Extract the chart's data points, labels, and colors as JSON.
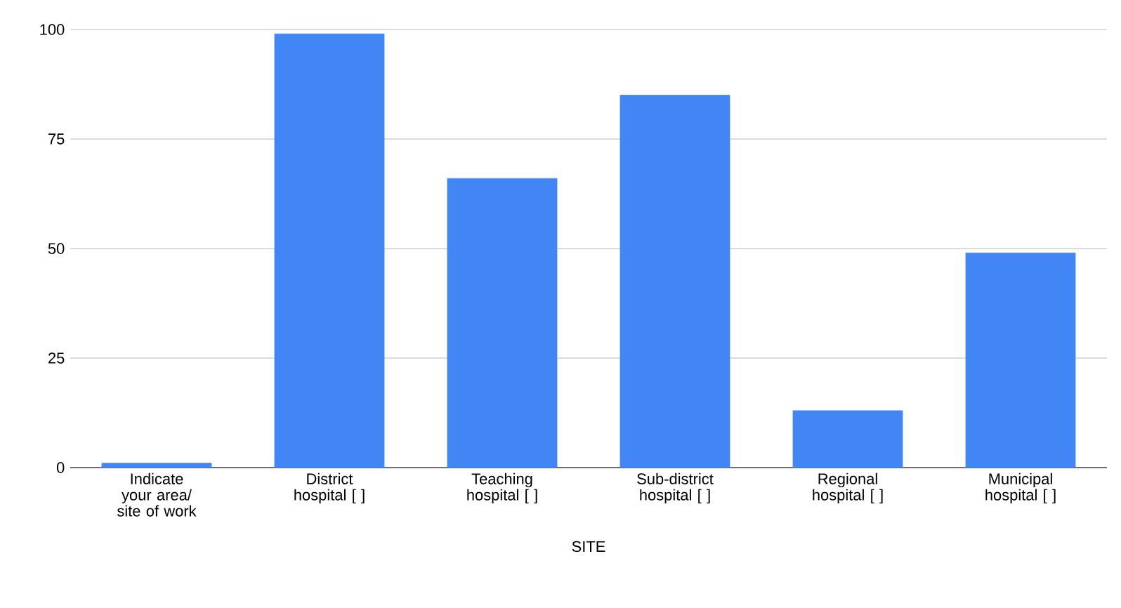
{
  "chart_data": {
    "type": "bar",
    "xlabel": "SITE",
    "categories": [
      "Indicate your area/ site of work",
      "District hospital [ ]",
      "Teaching hospital [ ]",
      "Sub-district hospital [ ]",
      "Regional hospital [ ]",
      "Municipal hospital [ ]"
    ],
    "values": [
      1,
      99,
      66,
      85,
      13,
      49
    ],
    "color": "#4285f4",
    "ylim": [
      0,
      100
    ],
    "yticks": [
      0,
      25,
      50,
      75,
      100
    ],
    "grid": "y"
  }
}
